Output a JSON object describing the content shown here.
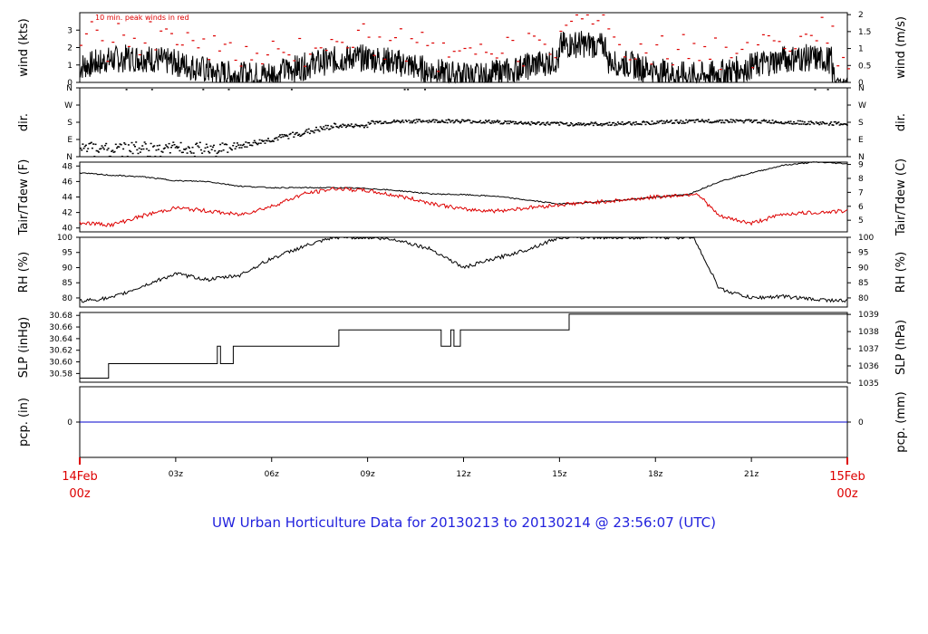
{
  "title": "UW Urban Horticulture Data for 20130213  to  20130214 @ 23:56:07  (UTC)",
  "colors": {
    "black": "#000000",
    "red": "#dd0000",
    "blue": "#2222dd",
    "precip_line": "#0000cc"
  },
  "x_axis": {
    "start_label_top": "14Feb",
    "start_label_bottom": "00z",
    "end_label_top": "15Feb",
    "end_label_bottom": "00z",
    "tick_labels": [
      "03z",
      "06z",
      "09z",
      "12z",
      "15z",
      "18z",
      "21z"
    ],
    "tick_hours": [
      3,
      6,
      9,
      12,
      15,
      18,
      21
    ],
    "range_hours": [
      0,
      24
    ]
  },
  "chart_data": [
    {
      "type": "line",
      "panel": "wind",
      "ylabel_left": "wind (kts)",
      "ylabel_right": "wind (m/s)",
      "ylim": [
        0,
        4
      ],
      "yticks_left": [
        "0",
        "1",
        "2",
        "3"
      ],
      "yticks_right": [
        "0",
        "0.5",
        "1",
        "1.5",
        "2"
      ],
      "annotation": "10 min. peak winds in red",
      "series": [
        {
          "values_approx": "sustained wind 0-3 kts, mostly 0.5-1.5 kts, highest near 15-16z"
        },
        {
          "name": "10 min. peak winds",
          "values_approx": "peaks 1.5-3.9 kts"
        }
      ]
    },
    {
      "type": "scatter",
      "panel": "dir",
      "ylabel_left": "dir.",
      "ylabel_right": "dir.",
      "yticks": [
        "N",
        "E",
        "S",
        "W",
        "N"
      ],
      "values_approx": "E-NE around 00-05z, turning to SE around 06-08z, near S (~175-185 deg) from 09z to 24z"
    },
    {
      "type": "line",
      "panel": "temperature",
      "ylabel_left": "Tair/Tdew (F)",
      "ylabel_right": "Tair/Tdew (C)",
      "ylim": [
        39.5,
        48.5
      ],
      "yticks_left": [
        "40",
        "42",
        "44",
        "46",
        "48"
      ],
      "yticks_right": [
        "5",
        "6",
        "7",
        "8",
        "9"
      ],
      "x": [
        0,
        1,
        2,
        3,
        4,
        5,
        6,
        7,
        8,
        9,
        10,
        11,
        12,
        13,
        14,
        15,
        16,
        17,
        18,
        19,
        19.3,
        20,
        21,
        22,
        23,
        24
      ],
      "series": [
        {
          "name": "Tair",
          "values": [
            47.1,
            46.8,
            46.6,
            46.1,
            46.0,
            45.4,
            45.2,
            45.2,
            45.2,
            45.1,
            44.8,
            44.4,
            44.3,
            44.1,
            43.6,
            43.1,
            43.3,
            43.6,
            44.0,
            44.3,
            44.8,
            46.0,
            47.1,
            48.1,
            48.5,
            48.3
          ]
        },
        {
          "name": "Tdew",
          "values": [
            40.7,
            40.4,
            41.6,
            42.6,
            42.2,
            41.7,
            42.8,
            44.4,
            45.1,
            44.8,
            44.1,
            43.2,
            42.4,
            42.2,
            42.6,
            43.0,
            43.3,
            43.6,
            44.0,
            44.3,
            44.5,
            41.5,
            40.6,
            41.8,
            42.0,
            42.2
          ]
        }
      ]
    },
    {
      "type": "line",
      "panel": "rh",
      "ylabel_left": "RH (%)",
      "ylabel_right": "RH (%)",
      "ylim": [
        77,
        100
      ],
      "yticks": [
        "80",
        "85",
        "90",
        "95",
        "100"
      ],
      "x": [
        0,
        1,
        2,
        3,
        4,
        5,
        6,
        7,
        8,
        9,
        10,
        11,
        12,
        13,
        14,
        15,
        16,
        17,
        18,
        19,
        19.2,
        20,
        21,
        22,
        23,
        24
      ],
      "values": [
        79,
        80,
        84,
        88,
        86,
        87.5,
        93,
        97,
        100,
        100,
        99,
        96,
        90,
        93,
        96,
        100,
        100,
        100,
        100,
        100,
        100,
        83,
        80,
        80.5,
        79.5,
        79
      ]
    },
    {
      "type": "line",
      "panel": "slp",
      "ylabel_left": "SLP (inHg)",
      "ylabel_right": "SLP (hPa)",
      "ylim": [
        30.565,
        30.685
      ],
      "yticks_left": [
        "30.58",
        "30.60",
        "30.62",
        "30.64",
        "30.66",
        "30.68"
      ],
      "yticks_right": [
        "1035",
        "1036",
        "1037",
        "1038",
        "1039"
      ],
      "x": [
        0,
        0.9,
        0.9,
        4.3,
        4.3,
        4.4,
        4.4,
        4.8,
        4.8,
        8.1,
        8.1,
        11.3,
        11.3,
        11.6,
        11.6,
        11.7,
        11.7,
        11.9,
        11.9,
        15.3,
        15.3,
        24
      ],
      "values": [
        30.572,
        30.572,
        30.597,
        30.597,
        30.627,
        30.627,
        30.597,
        30.597,
        30.627,
        30.627,
        30.655,
        30.655,
        30.627,
        30.627,
        30.655,
        30.655,
        30.627,
        30.627,
        30.655,
        30.655,
        30.682,
        30.682
      ]
    },
    {
      "type": "line",
      "panel": "precip",
      "ylabel_left": "pcp. (in)",
      "ylabel_right": "pcp. (mm)",
      "yticks_left": [
        "0"
      ],
      "yticks_right": [
        "0"
      ],
      "x": [
        0,
        24
      ],
      "values": [
        0,
        0
      ]
    }
  ]
}
